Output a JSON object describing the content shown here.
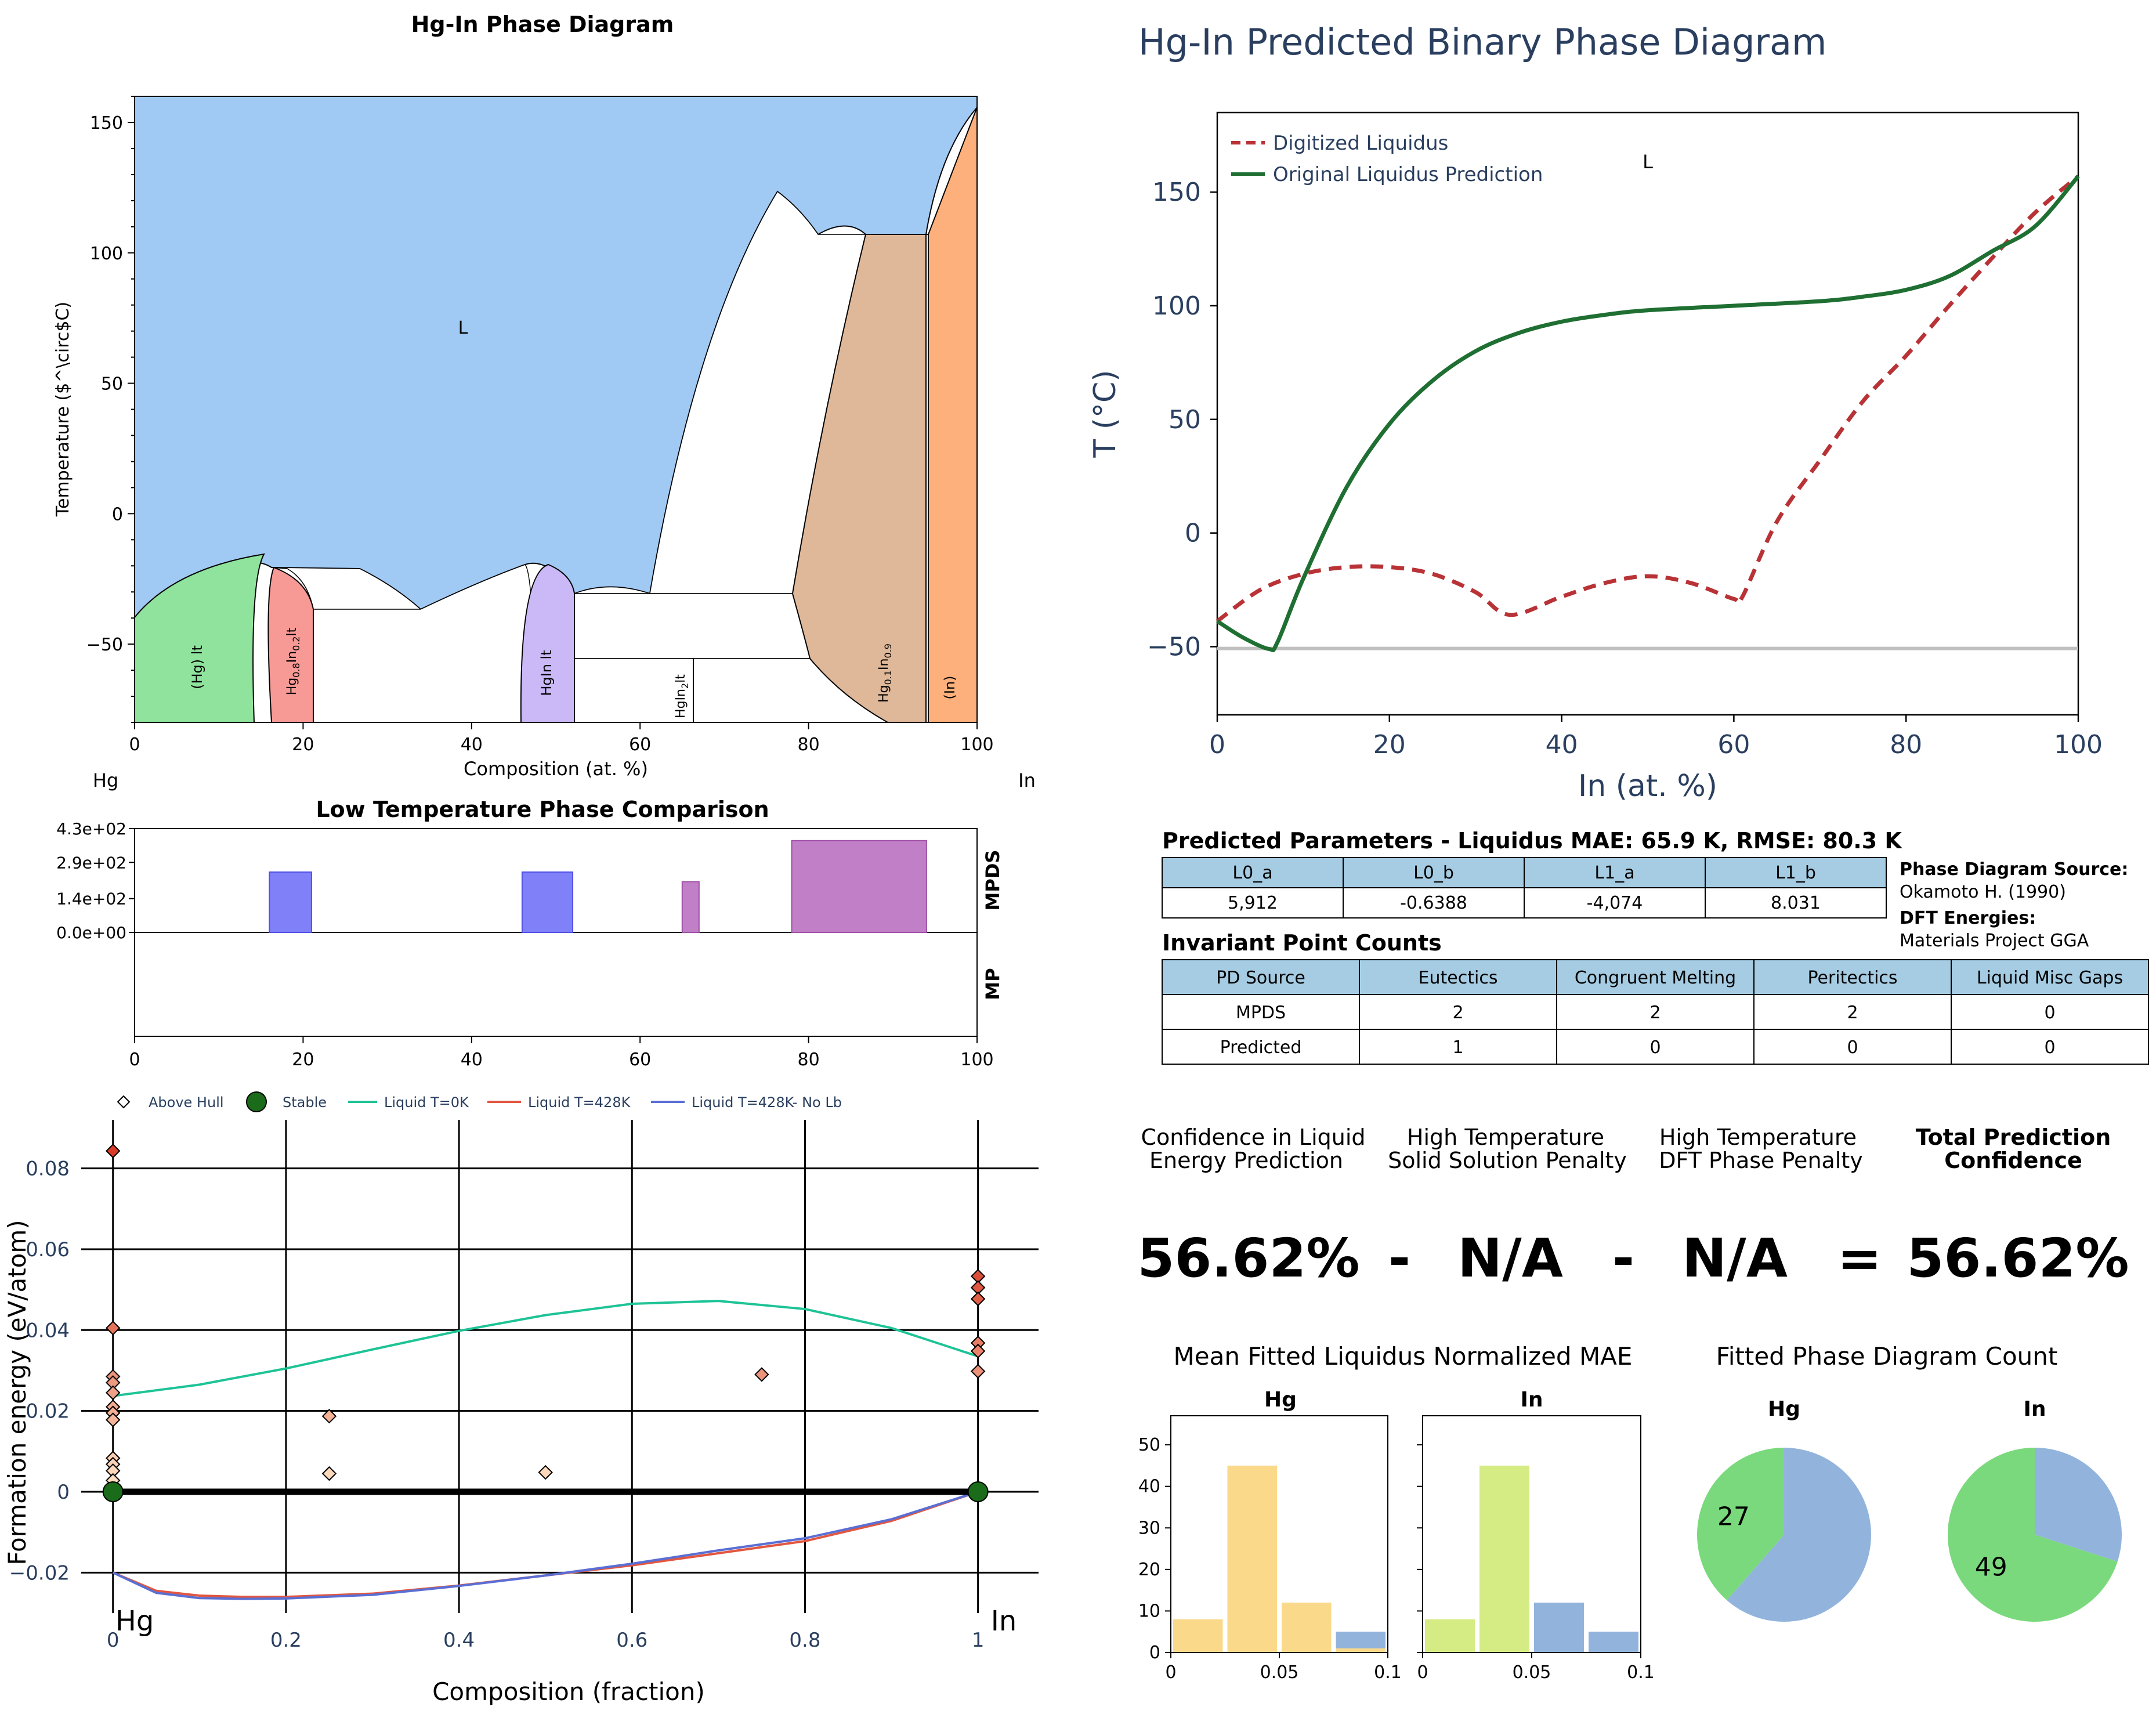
{
  "colors": {
    "liquid_region": "#a0c9f3",
    "hg_lt": "#8fe39c",
    "hg08in02": "#f79a96",
    "hgin": "#cbb9f7",
    "hg01in09": "#dfb899",
    "in_phase": "#fdb07c",
    "digitized": "#b83236",
    "original": "#1f6f33",
    "navy": "#2a3f5f",
    "table_header": "#a5cce3",
    "bar_blue": "#8080f8",
    "bar_purple": "#c07fc6",
    "liq0": "#1ec396",
    "liq428": "#e2563f",
    "liq428nolb": "#5a6fd4",
    "hist_yellow": "#fbd98a",
    "hist_green": "#d5ec84",
    "hist_blue": "#92b4dc",
    "pie_green": "#7ad97c",
    "pie_blue": "#92b4dc"
  },
  "chart_data": [
    {
      "type": "phase_diagram",
      "title": "Hg-In Phase Diagram",
      "xlabel": "Composition (at. %)",
      "ylabel": "Temperature ($^\\circ$C)",
      "xlim": [
        0,
        100
      ],
      "ylim": [
        -80,
        160
      ],
      "xticks": [
        "0",
        "20",
        "40",
        "60",
        "80",
        "100"
      ],
      "yticks": [
        "−50",
        "0",
        "50",
        "100",
        "150"
      ],
      "ytick_values": [
        -50,
        0,
        50,
        100,
        150
      ],
      "left_element": "Hg",
      "right_element": "In",
      "region_label": "L",
      "phases": [
        {
          "label": "(Hg) lt",
          "x_range": [
            0,
            15
          ],
          "t_max": -15
        },
        {
          "label": "Hg0.8In0.2lt",
          "x_range": [
            16,
            21
          ],
          "t_max": -20
        },
        {
          "label": "HgIn lt",
          "x_range": [
            46,
            52
          ],
          "t_max": -19
        },
        {
          "label": "HgIn2lt",
          "x_range": [
            65,
            66
          ],
          "t_max": -55
        },
        {
          "label": "Hg0.1In0.9",
          "x_range": [
            78,
            94
          ],
          "t_max": 108
        },
        {
          "label": "(In)",
          "x_range": [
            94,
            100
          ],
          "t_max": 156.6
        }
      ]
    },
    {
      "type": "line",
      "title": "Hg-In Predicted Binary Phase Diagram",
      "xlabel": "In (at. %)",
      "ylabel": "T (°C)",
      "xlim": [
        0,
        100
      ],
      "ylim": [
        -80,
        185
      ],
      "xticks": [
        "0",
        "20",
        "40",
        "60",
        "80",
        "100"
      ],
      "yticks": [
        "−50",
        "0",
        "50",
        "100",
        "150"
      ],
      "ytick_values": [
        -50,
        0,
        50,
        100,
        150
      ],
      "label": "L",
      "legend_position": "top-left",
      "reference_line_y": -50.8,
      "series": [
        {
          "name": "Digitized Liquidus",
          "style": "dashed",
          "x": [
            0,
            5,
            10,
            15,
            20,
            25,
            30,
            34,
            40,
            45,
            50,
            55,
            60,
            61,
            65,
            70,
            75,
            80,
            85,
            90,
            95,
            100
          ],
          "y": [
            -38.8,
            -25,
            -18,
            -15,
            -15,
            -18,
            -26,
            -36,
            -28,
            -22,
            -19,
            -22,
            -29,
            -28,
            5,
            32,
            58,
            78,
            100,
            121,
            141,
            157
          ]
        },
        {
          "name": "Original Liquidus Prediction",
          "style": "solid",
          "x": [
            0,
            3,
            6,
            7,
            10,
            15,
            20,
            25,
            30,
            35,
            40,
            45,
            50,
            60,
            70,
            75,
            80,
            85,
            90,
            95,
            100
          ],
          "y": [
            -38.8,
            -46,
            -51,
            -48,
            -20,
            20,
            48,
            67,
            80,
            88,
            93,
            96,
            98,
            100,
            102,
            104,
            107,
            113,
            124,
            135,
            157
          ]
        }
      ]
    },
    {
      "type": "bar",
      "title": "Low Temperature Phase Comparison",
      "xlim": [
        0,
        100
      ],
      "xticks": [
        "0",
        "20",
        "40",
        "60",
        "80",
        "100"
      ],
      "yticks": [
        "4.3e+02",
        "2.9e+02",
        "1.4e+02",
        "0.0e+00"
      ],
      "ylim": [
        0,
        430
      ],
      "row_labels": [
        "MPDS",
        "MP"
      ],
      "bars": [
        {
          "x0": 16,
          "x1": 21,
          "value": 250,
          "color": "blue"
        },
        {
          "x0": 46,
          "x1": 52,
          "value": 250,
          "color": "blue"
        },
        {
          "x0": 65,
          "x1": 67,
          "value": 210,
          "color": "purple"
        },
        {
          "x0": 78,
          "x1": 94,
          "value": 380,
          "color": "purple"
        }
      ]
    },
    {
      "type": "scatter",
      "xlabel": "Composition (fraction)",
      "ylabel": "Formation energy (eV/atom)",
      "xlim": [
        -0.03,
        1.07
      ],
      "ylim": [
        -0.03,
        0.092
      ],
      "xticks": [
        "0",
        "0.2",
        "0.4",
        "0.6",
        "0.8",
        "1"
      ],
      "xtick_values": [
        0,
        0.2,
        0.4,
        0.6,
        0.8,
        1
      ],
      "yticks": [
        "−0.02",
        "0",
        "0.02",
        "0.04",
        "0.06",
        "0.08"
      ],
      "ytick_values": [
        -0.02,
        0,
        0.02,
        0.04,
        0.06,
        0.08
      ],
      "left_label": "Hg",
      "right_label": "In",
      "legend": [
        "Above Hull",
        "Stable",
        "Liquid T=0K",
        "Liquid T=428K",
        "Liquid T=428K- No Lb"
      ],
      "above_hull": [
        [
          0,
          0.0843
        ],
        [
          0,
          0.0405
        ],
        [
          0,
          0.0285
        ],
        [
          0,
          0.027
        ],
        [
          0,
          0.0245
        ],
        [
          0,
          0.021
        ],
        [
          0,
          0.0195
        ],
        [
          0,
          0.0178
        ],
        [
          0,
          0.0083
        ],
        [
          0,
          0.0068
        ],
        [
          0,
          0.0052
        ],
        [
          0,
          0.0028
        ],
        [
          0,
          0.0008
        ],
        [
          0.25,
          0.0187
        ],
        [
          0.25,
          0.0045
        ],
        [
          0.5,
          0.0048
        ],
        [
          0.75,
          0.029
        ],
        [
          1,
          0.0533
        ],
        [
          1,
          0.0505
        ],
        [
          1,
          0.0477
        ],
        [
          1,
          0.0368
        ],
        [
          1,
          0.0348
        ],
        [
          1,
          0.0298
        ]
      ],
      "stable": [
        [
          0,
          0
        ],
        [
          1,
          0
        ]
      ],
      "liquid_0K": {
        "x": [
          0,
          0.1,
          0.2,
          0.3,
          0.4,
          0.5,
          0.6,
          0.7,
          0.8,
          0.9,
          1
        ],
        "y": [
          0.0237,
          0.0265,
          0.0305,
          0.0352,
          0.0398,
          0.0437,
          0.0465,
          0.0472,
          0.0452,
          0.0405,
          0.0335
        ]
      },
      "liquid_428K": {
        "x": [
          0,
          0.05,
          0.1,
          0.15,
          0.2,
          0.3,
          0.4,
          0.5,
          0.6,
          0.7,
          0.8,
          0.9,
          1
        ],
        "y": [
          -0.02,
          -0.0245,
          -0.0257,
          -0.026,
          -0.026,
          -0.0252,
          -0.0232,
          -0.0207,
          -0.0182,
          -0.0152,
          -0.0122,
          -0.0072,
          0
        ]
      },
      "liquid_428K_nolb": {
        "x": [
          0,
          0.05,
          0.1,
          0.15,
          0.2,
          0.3,
          0.4,
          0.5,
          0.6,
          0.7,
          0.8,
          0.9,
          1
        ],
        "y": [
          -0.02,
          -0.025,
          -0.0263,
          -0.0265,
          -0.0264,
          -0.0255,
          -0.0233,
          -0.0207,
          -0.0178,
          -0.0145,
          -0.0115,
          -0.0068,
          0
        ]
      }
    },
    {
      "type": "histogram",
      "title": "Mean Fitted Liquidus Normalized MAE",
      "ylim": [
        0,
        57
      ],
      "yticks": [
        "0",
        "10",
        "20",
        "30",
        "40",
        "50"
      ],
      "ytick_values": [
        0,
        10,
        20,
        30,
        40,
        50
      ],
      "xticks": [
        "0",
        "0.05",
        "0.1"
      ],
      "panels": [
        {
          "name": "Hg",
          "bins": [
            [
              0,
              0.025,
              8,
              "yellow"
            ],
            [
              0.025,
              0.05,
              45,
              "yellow"
            ],
            [
              0.05,
              0.075,
              12,
              "yellow"
            ],
            [
              0.075,
              0.1,
              5,
              "blue"
            ],
            [
              0.075,
              0.1,
              1,
              "yellow"
            ]
          ]
        },
        {
          "name": "In",
          "bins": [
            [
              0,
              0.025,
              8,
              "green"
            ],
            [
              0.025,
              0.05,
              45,
              "green"
            ],
            [
              0.05,
              0.075,
              12,
              "blue"
            ],
            [
              0.075,
              0.1,
              5,
              "blue"
            ]
          ]
        }
      ]
    },
    {
      "type": "pie",
      "title": "Fitted Phase Diagram Count",
      "pies": [
        {
          "name": "Hg",
          "label": "27",
          "green": 27,
          "blue": 43
        },
        {
          "name": "In",
          "label": "49",
          "green": 49,
          "blue": 21
        }
      ]
    }
  ],
  "params_table": {
    "title": "Predicted Parameters - Liquidus MAE: 65.9 K, RMSE: 80.3 K",
    "headers": [
      "L0_a",
      "L0_b",
      "L1_a",
      "L1_b"
    ],
    "values": [
      "5,912",
      "-0.6388",
      "-4,074",
      "8.031"
    ]
  },
  "source_info": {
    "pd_source_label": "Phase Diagram Source:",
    "pd_source_value": "Okamoto H. (1990)",
    "dft_label": "DFT Energies:",
    "dft_value": "Materials Project GGA"
  },
  "invariant_table": {
    "title": "Invariant Point Counts",
    "headers": [
      "PD Source",
      "Eutectics",
      "Congruent Melting",
      "Peritectics",
      "Liquid Misc Gaps"
    ],
    "rows": [
      [
        "MPDS",
        "2",
        "2",
        "2",
        "0"
      ],
      [
        "Predicted",
        "1",
        "0",
        "0",
        "0"
      ]
    ]
  },
  "confidence": {
    "col1_l1": "Confidence in Liquid",
    "col1_l2": "Energy Prediction",
    "col2_l1": "High Temperature",
    "col2_l2": "Solid Solution Penalty",
    "col3_l1": "High Temperature",
    "col3_l2": "DFT Phase Penalty",
    "col4_l1": "Total Prediction",
    "col4_l2": "Confidence",
    "v1": "56.62%",
    "op1": "-",
    "v2": "N/A",
    "op2": "-",
    "v3": "N/A",
    "op3": "=",
    "v4": "56.62%"
  }
}
